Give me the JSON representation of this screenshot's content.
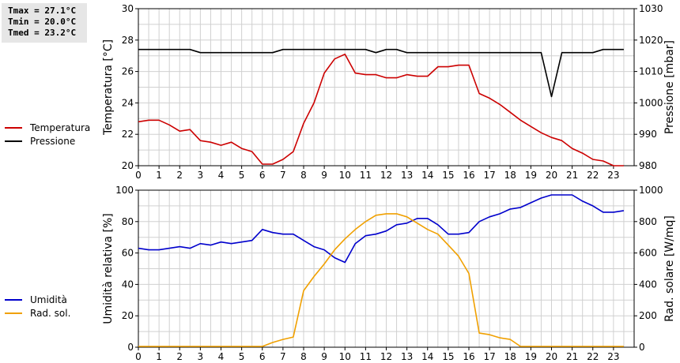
{
  "stats": {
    "tmax": "Tmax = 27.1°C",
    "tmin": "Tmin = 20.0°C",
    "tmed": "Tmed = 23.2°C"
  },
  "colors": {
    "temperature": "#cc0000",
    "pressure": "#000000",
    "humidity": "#0000cc",
    "radiation": "#f0a000",
    "grid": "#d0d0d0"
  },
  "chart_data": [
    {
      "type": "line",
      "xlim": [
        0,
        24
      ],
      "xticks": [
        0,
        1,
        2,
        3,
        4,
        5,
        6,
        7,
        8,
        9,
        10,
        11,
        12,
        13,
        14,
        15,
        16,
        17,
        18,
        19,
        20,
        21,
        22,
        23
      ],
      "ylabel_left": "Temperatura [°C]",
      "ylabel_right": "Pressione [mbar]",
      "ylim_left": [
        20,
        30
      ],
      "yticks_left": [
        20,
        22,
        24,
        26,
        28,
        30
      ],
      "ylim_right": [
        980,
        1030
      ],
      "yticks_right": [
        980,
        990,
        1000,
        1010,
        1020,
        1030
      ],
      "grid": true,
      "series": [
        {
          "name": "Temperatura",
          "axis": "left",
          "x": [
            0,
            0.5,
            1,
            1.5,
            2,
            2.5,
            3,
            3.5,
            4,
            4.5,
            5,
            5.5,
            6,
            6.5,
            7,
            7.5,
            8,
            8.5,
            9,
            9.5,
            10,
            10.5,
            11,
            11.5,
            12,
            12.5,
            13,
            13.5,
            14,
            14.5,
            15,
            15.5,
            16,
            16.5,
            17,
            17.5,
            18,
            18.5,
            19,
            19.5,
            20,
            20.5,
            21,
            21.5,
            22,
            22.5,
            23,
            23.5
          ],
          "y": [
            22.8,
            22.9,
            22.9,
            22.6,
            22.2,
            22.3,
            21.6,
            21.5,
            21.3,
            21.5,
            21.1,
            20.9,
            20.1,
            20.1,
            20.4,
            20.9,
            22.7,
            24.0,
            25.9,
            26.8,
            27.1,
            25.9,
            25.8,
            25.8,
            25.6,
            25.6,
            25.8,
            25.7,
            25.7,
            26.3,
            26.3,
            26.4,
            26.4,
            24.6,
            24.3,
            23.9,
            23.4,
            22.9,
            22.5,
            22.1,
            21.8,
            21.6,
            21.1,
            20.8,
            20.4,
            20.3,
            20.0,
            20.0
          ]
        },
        {
          "name": "Pressione",
          "axis": "right",
          "x": [
            0,
            0.5,
            1,
            1.5,
            2,
            2.5,
            3,
            3.5,
            4,
            4.5,
            5,
            5.5,
            6,
            6.5,
            7,
            7.5,
            8,
            8.5,
            9,
            9.5,
            10,
            10.5,
            11,
            11.5,
            12,
            12.5,
            13,
            13.5,
            14,
            14.5,
            15,
            15.5,
            16,
            16.5,
            17,
            17.5,
            18,
            18.5,
            19,
            19.5,
            20,
            20.5,
            21,
            21.5,
            22,
            22.5,
            23,
            23.5
          ],
          "y": [
            1017,
            1017,
            1017,
            1017,
            1017,
            1017,
            1016,
            1016,
            1016,
            1016,
            1016,
            1016,
            1016,
            1016,
            1017,
            1017,
            1017,
            1017,
            1017,
            1017,
            1017,
            1017,
            1017,
            1016,
            1017,
            1017,
            1016,
            1016,
            1016,
            1016,
            1016,
            1016,
            1016,
            1016,
            1016,
            1016,
            1016,
            1016,
            1016,
            1016,
            1002,
            1016,
            1016,
            1016,
            1016,
            1017,
            1017,
            1017
          ]
        }
      ]
    },
    {
      "type": "line",
      "xlim": [
        0,
        24
      ],
      "xticks": [
        0,
        1,
        2,
        3,
        4,
        5,
        6,
        7,
        8,
        9,
        10,
        11,
        12,
        13,
        14,
        15,
        16,
        17,
        18,
        19,
        20,
        21,
        22,
        23
      ],
      "ylabel_left": "Umidità relativa [%]",
      "ylabel_right": "Rad. solare [W/mq]",
      "ylim_left": [
        0,
        100
      ],
      "yticks_left": [
        0,
        20,
        40,
        60,
        80,
        100
      ],
      "ylim_right": [
        0,
        1000
      ],
      "yticks_right": [
        0,
        200,
        400,
        600,
        800,
        1000
      ],
      "grid": true,
      "series": [
        {
          "name": "Umidità",
          "axis": "left",
          "x": [
            0,
            0.5,
            1,
            1.5,
            2,
            2.5,
            3,
            3.5,
            4,
            4.5,
            5,
            5.5,
            6,
            6.5,
            7,
            7.5,
            8,
            8.5,
            9,
            9.5,
            10,
            10.5,
            11,
            11.5,
            12,
            12.5,
            13,
            13.5,
            14,
            14.5,
            15,
            15.5,
            16,
            16.5,
            17,
            17.5,
            18,
            18.5,
            19,
            19.5,
            20,
            20.5,
            21,
            21.5,
            22,
            22.5,
            23,
            23.5
          ],
          "y": [
            63,
            62,
            62,
            63,
            64,
            63,
            66,
            65,
            67,
            66,
            67,
            68,
            75,
            73,
            72,
            72,
            68,
            64,
            62,
            57,
            54,
            66,
            71,
            72,
            74,
            78,
            79,
            82,
            82,
            78,
            72,
            72,
            73,
            80,
            83,
            85,
            88,
            89,
            92,
            95,
            97,
            97,
            97,
            93,
            90,
            86,
            86,
            87
          ]
        },
        {
          "name": "Rad. sol.",
          "axis": "right",
          "x": [
            0,
            1,
            2,
            3,
            4,
            5,
            6,
            6.5,
            7,
            7.5,
            8,
            8.5,
            9,
            9.5,
            10,
            10.5,
            11,
            11.5,
            12,
            12.5,
            13,
            13.5,
            14,
            14.5,
            15,
            15.5,
            16,
            16.5,
            17,
            17.5,
            18,
            18.5,
            19,
            20,
            21,
            22,
            23,
            23.5
          ],
          "y": [
            5,
            5,
            5,
            5,
            5,
            5,
            5,
            30,
            50,
            65,
            360,
            450,
            530,
            620,
            690,
            750,
            800,
            840,
            850,
            850,
            830,
            790,
            750,
            720,
            650,
            580,
            470,
            90,
            80,
            60,
            50,
            5,
            5,
            5,
            5,
            5,
            5,
            5
          ]
        }
      ]
    }
  ]
}
